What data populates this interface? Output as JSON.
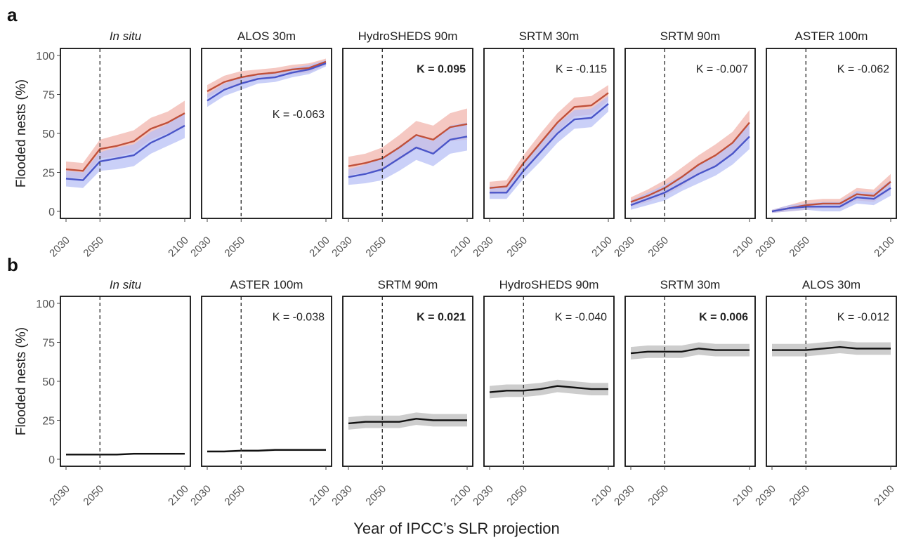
{
  "figure": {
    "xlabel": "Year of IPCC’s SLR projection",
    "ylabel": "Flooded nests (%)",
    "colors": {
      "red": "#c0503a",
      "red_band": "#f2b6ad",
      "blue": "#4a55c8",
      "blue_band": "#b8c0f6",
      "black": "#111111",
      "grey_band": "#c8c8c8",
      "vline": "#333333",
      "axis": "#444444",
      "tick_label": "#555555"
    }
  },
  "chart_data": [
    {
      "row_label": "a",
      "type": "line",
      "ylim": [
        0,
        100
      ],
      "yticks": [
        0,
        25,
        50,
        75,
        100
      ],
      "xlim": [
        2030,
        2100
      ],
      "xticks": [
        "2030",
        "2050",
        "2100"
      ],
      "vline": 2050,
      "panels": [
        {
          "title": "In situ",
          "title_italic": true,
          "kappa": "",
          "kappa_bold": false,
          "kappa_pos": "top-right",
          "x": [
            2030,
            2040,
            2050,
            2060,
            2070,
            2080,
            2090,
            2100
          ],
          "series": [
            {
              "color": "red",
              "values": [
                27,
                26,
                40,
                42,
                45,
                53,
                57,
                63
              ],
              "band": [
                5,
                5,
                6,
                7,
                7,
                7,
                7,
                8
              ]
            },
            {
              "color": "blue",
              "values": [
                21,
                20,
                32,
                34,
                36,
                44,
                49,
                55
              ],
              "band": [
                5,
                5,
                6,
                7,
                7,
                7,
                7,
                8
              ]
            }
          ]
        },
        {
          "title": "ALOS 30m",
          "title_italic": false,
          "kappa": "K = -0.063",
          "kappa_bold": false,
          "kappa_pos": "mid-right",
          "x": [
            2030,
            2040,
            2050,
            2060,
            2070,
            2080,
            2090,
            2100
          ],
          "series": [
            {
              "color": "red",
              "values": [
                77,
                83,
                86,
                88,
                89,
                91,
                92,
                96
              ],
              "band": [
                4,
                4,
                4,
                3,
                3,
                3,
                3,
                2
              ]
            },
            {
              "color": "blue",
              "values": [
                71,
                78,
                82,
                85,
                86,
                89,
                91,
                95
              ],
              "band": [
                4,
                4,
                4,
                3,
                3,
                3,
                3,
                2
              ]
            }
          ]
        },
        {
          "title": "HydroSHEDS 90m",
          "title_italic": false,
          "kappa": "K = 0.095",
          "kappa_bold": true,
          "kappa_pos": "top-right",
          "x": [
            2030,
            2040,
            2050,
            2060,
            2070,
            2080,
            2090,
            2100
          ],
          "series": [
            {
              "color": "red",
              "values": [
                29,
                31,
                34,
                41,
                49,
                46,
                54,
                56
              ],
              "band": [
                6,
                6,
                7,
                8,
                9,
                9,
                9,
                10
              ]
            },
            {
              "color": "blue",
              "values": [
                22,
                24,
                27,
                34,
                41,
                37,
                46,
                48
              ],
              "band": [
                5,
                6,
                7,
                8,
                8,
                8,
                9,
                9
              ]
            }
          ]
        },
        {
          "title": "SRTM 30m",
          "title_italic": false,
          "kappa": "K = -0.115",
          "kappa_bold": false,
          "kappa_pos": "top-right",
          "x": [
            2030,
            2040,
            2050,
            2060,
            2070,
            2080,
            2090,
            2100
          ],
          "series": [
            {
              "color": "red",
              "values": [
                15,
                16,
                31,
                44,
                57,
                67,
                68,
                76
              ],
              "band": [
                4,
                4,
                5,
                6,
                6,
                6,
                6,
                5
              ]
            },
            {
              "color": "blue",
              "values": [
                12,
                12,
                26,
                38,
                50,
                59,
                60,
                69
              ],
              "band": [
                4,
                4,
                5,
                6,
                6,
                6,
                6,
                5
              ]
            }
          ]
        },
        {
          "title": "SRTM 90m",
          "title_italic": false,
          "kappa": "K = -0.007",
          "kappa_bold": false,
          "kappa_pos": "top-right",
          "x": [
            2030,
            2040,
            2050,
            2060,
            2070,
            2080,
            2090,
            2100
          ],
          "series": [
            {
              "color": "red",
              "values": [
                6,
                10,
                15,
                22,
                30,
                36,
                44,
                57
              ],
              "band": [
                3,
                4,
                5,
                6,
                6,
                7,
                7,
                8
              ]
            },
            {
              "color": "blue",
              "values": [
                4,
                8,
                12,
                18,
                24,
                29,
                37,
                48
              ],
              "band": [
                3,
                4,
                5,
                5,
                6,
                6,
                7,
                8
              ]
            }
          ]
        },
        {
          "title": "ASTER 100m",
          "title_italic": false,
          "kappa": "K = -0.062",
          "kappa_bold": false,
          "kappa_pos": "top-right",
          "x": [
            2030,
            2040,
            2050,
            2060,
            2070,
            2080,
            2090,
            2100
          ],
          "series": [
            {
              "color": "red",
              "values": [
                0,
                2,
                4,
                5,
                5,
                11,
                10,
                19
              ],
              "band": [
                1,
                2,
                3,
                3,
                3,
                4,
                4,
                5
              ]
            },
            {
              "color": "blue",
              "values": [
                0,
                2,
                3,
                3,
                3,
                9,
                8,
                15
              ],
              "band": [
                1,
                2,
                2,
                3,
                3,
                4,
                4,
                5
              ]
            }
          ]
        }
      ]
    },
    {
      "row_label": "b",
      "type": "line",
      "ylim": [
        0,
        100
      ],
      "yticks": [
        0,
        25,
        50,
        75,
        100
      ],
      "xlim": [
        2030,
        2100
      ],
      "xticks": [
        "2030",
        "2050",
        "2100"
      ],
      "vline": 2050,
      "panels": [
        {
          "title": "In situ",
          "title_italic": true,
          "kappa": "",
          "kappa_bold": false,
          "kappa_pos": "top-right",
          "x": [
            2030,
            2040,
            2050,
            2060,
            2070,
            2080,
            2090,
            2100
          ],
          "series": [
            {
              "color": "black",
              "values": [
                3,
                3,
                3,
                3,
                3.5,
                3.5,
                3.5,
                3.5
              ],
              "band": [
                0.6,
                0.6,
                0.6,
                0.6,
                0.6,
                0.6,
                0.6,
                0.6
              ]
            }
          ]
        },
        {
          "title": "ASTER 100m",
          "title_italic": false,
          "kappa": "K = -0.038",
          "kappa_bold": false,
          "kappa_pos": "top-right",
          "x": [
            2030,
            2040,
            2050,
            2060,
            2070,
            2080,
            2090,
            2100
          ],
          "series": [
            {
              "color": "black",
              "values": [
                5,
                5,
                5.5,
                5.5,
                6,
                6,
                6,
                6
              ],
              "band": [
                0.7,
                0.7,
                0.7,
                0.7,
                0.7,
                0.7,
                0.7,
                0.7
              ]
            }
          ]
        },
        {
          "title": "SRTM 90m",
          "title_italic": false,
          "kappa": "K = 0.021",
          "kappa_bold": true,
          "kappa_pos": "top-right",
          "x": [
            2030,
            2040,
            2050,
            2060,
            2070,
            2080,
            2090,
            2100
          ],
          "series": [
            {
              "color": "black",
              "values": [
                23,
                24,
                24,
                24,
                26,
                25,
                25,
                25
              ],
              "band": [
                4,
                4,
                4,
                4,
                4,
                4,
                4,
                4
              ]
            }
          ]
        },
        {
          "title": "HydroSHEDS 90m",
          "title_italic": false,
          "kappa": "K = -0.040",
          "kappa_bold": false,
          "kappa_pos": "top-right",
          "x": [
            2030,
            2040,
            2050,
            2060,
            2070,
            2080,
            2090,
            2100
          ],
          "series": [
            {
              "color": "black",
              "values": [
                43,
                44,
                44,
                45,
                47,
                46,
                45,
                45
              ],
              "band": [
                4,
                4,
                4,
                4,
                4,
                4,
                4,
                4
              ]
            }
          ]
        },
        {
          "title": "SRTM 30m",
          "title_italic": false,
          "kappa": "K = 0.006",
          "kappa_bold": true,
          "kappa_pos": "top-right",
          "x": [
            2030,
            2040,
            2050,
            2060,
            2070,
            2080,
            2090,
            2100
          ],
          "series": [
            {
              "color": "black",
              "values": [
                68,
                69,
                69,
                69,
                71,
                70,
                70,
                70
              ],
              "band": [
                4,
                4,
                4,
                4,
                4,
                4,
                4,
                4
              ]
            }
          ]
        },
        {
          "title": "ALOS 30m",
          "title_italic": false,
          "kappa": "K = -0.012",
          "kappa_bold": false,
          "kappa_pos": "top-right",
          "x": [
            2030,
            2040,
            2050,
            2060,
            2070,
            2080,
            2090,
            2100
          ],
          "series": [
            {
              "color": "black",
              "values": [
                70,
                70,
                70,
                71,
                72,
                71,
                71,
                71
              ],
              "band": [
                4,
                4,
                4,
                4,
                4,
                4,
                4,
                4
              ]
            }
          ]
        }
      ]
    }
  ]
}
